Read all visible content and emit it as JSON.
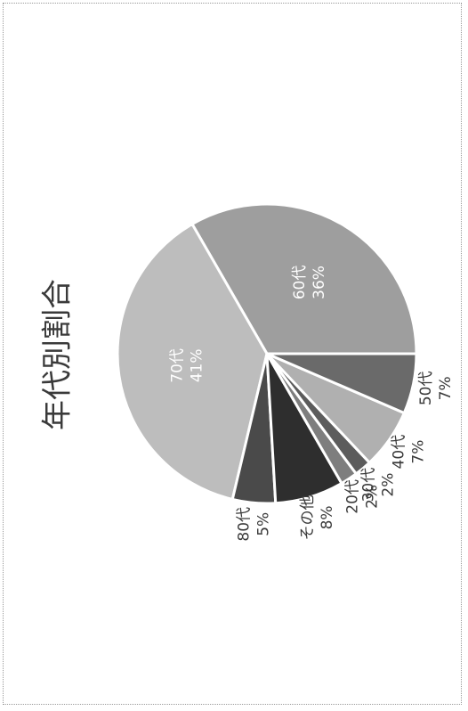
{
  "chart_data": {
    "type": "pie",
    "title": "年代別割合",
    "orientation": "rotated-90-counterclockwise",
    "slices": [
      {
        "name": "60代",
        "percent": "36%",
        "value": 36,
        "color": "#9e9e9e",
        "label_inside": true
      },
      {
        "name": "70代",
        "percent": "41%",
        "value": 41,
        "color": "#bdbdbd",
        "label_inside": true
      },
      {
        "name": "80代",
        "percent": "5%",
        "value": 5,
        "color": "#4a4a4a",
        "label_inside": false
      },
      {
        "name": "その他",
        "percent": "8%",
        "value": 8,
        "color": "#2e2e2e",
        "label_inside": false
      },
      {
        "name": "20代",
        "percent": "2%",
        "value": 2,
        "color": "#7e7e7e",
        "label_inside": false
      },
      {
        "name": "30代",
        "percent": "2%",
        "value": 2,
        "color": "#5c5c5c",
        "label_inside": false
      },
      {
        "name": "40代",
        "percent": "7%",
        "value": 7,
        "color": "#b0b0b0",
        "label_inside": false
      },
      {
        "name": "50代",
        "percent": "7%",
        "value": 7,
        "color": "#6a6a6a",
        "label_inside": false
      }
    ]
  }
}
